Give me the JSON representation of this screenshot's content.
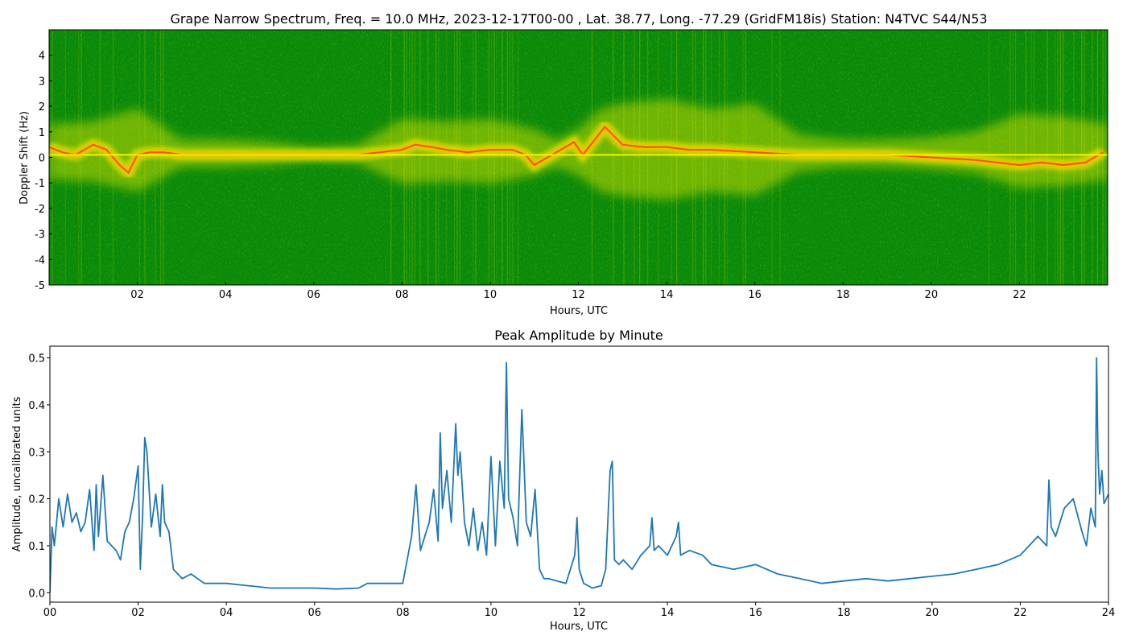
{
  "chart_data": [
    {
      "type": "heatmap",
      "title": "Grape Narrow Spectrum, Freq. = 10.0 MHz, 2023-12-17T00-00 , Lat.  38.77, Long. -77.29 (GridFM18is) Station: N4TVC S44/N53",
      "xlabel": "Hours, UTC",
      "ylabel": "Doppler Shift (Hz)",
      "xlim": [
        0,
        24
      ],
      "ylim": [
        -5,
        5
      ],
      "x_ticks": [
        "02",
        "04",
        "06",
        "08",
        "10",
        "12",
        "14",
        "16",
        "18",
        "20",
        "22"
      ],
      "y_ticks": [
        "-5",
        "-4",
        "-3",
        "-2",
        "-1",
        "0",
        "1",
        "2",
        "3",
        "4"
      ],
      "colors": {
        "background": "#0a8a0a",
        "mid": "#e8e800",
        "high": "#ff3300"
      },
      "carrier_hz": 0.1,
      "doppler_trace": {
        "hours": [
          0,
          0.3,
          0.6,
          1.0,
          1.3,
          1.6,
          1.8,
          2.0,
          2.3,
          2.6,
          3.0,
          4.0,
          5.0,
          6.0,
          7.0,
          7.5,
          8.0,
          8.3,
          8.7,
          9.0,
          9.5,
          10.0,
          10.5,
          10.8,
          11.0,
          11.5,
          11.9,
          12.1,
          12.6,
          13.0,
          13.5,
          14.0,
          14.5,
          15.0,
          16.0,
          17.0,
          18.0,
          19.0,
          20.0,
          21.0,
          22.0,
          22.5,
          23.0,
          23.5,
          23.9
        ],
        "shift_hz": [
          0.4,
          0.2,
          0.1,
          0.5,
          0.3,
          -0.3,
          -0.6,
          0.1,
          0.2,
          0.2,
          0.1,
          0.1,
          0.1,
          0.1,
          0.1,
          0.2,
          0.3,
          0.5,
          0.4,
          0.3,
          0.2,
          0.3,
          0.3,
          0.1,
          -0.3,
          0.2,
          0.6,
          0.1,
          1.2,
          0.5,
          0.4,
          0.4,
          0.3,
          0.3,
          0.2,
          0.1,
          0.1,
          0.1,
          0.0,
          -0.1,
          -0.3,
          -0.2,
          -0.3,
          -0.2,
          0.2
        ]
      },
      "activity": {
        "hours": [
          0,
          1,
          2,
          3,
          4,
          5,
          6,
          7,
          7.5,
          8,
          9,
          10,
          11,
          11.5,
          12,
          12.5,
          13,
          14,
          15,
          16,
          17,
          18,
          19,
          20,
          21,
          22,
          23,
          24
        ],
        "spread_hz": [
          1.2,
          1.3,
          1.8,
          0.6,
          0.6,
          0.5,
          0.3,
          0.4,
          0.9,
          1.4,
          1.3,
          1.4,
          1.0,
          0.6,
          1.0,
          1.8,
          2.0,
          2.2,
          1.8,
          2.0,
          0.8,
          0.6,
          0.6,
          0.7,
          0.9,
          1.6,
          1.5,
          1.2
        ]
      }
    },
    {
      "type": "line",
      "title": "Peak Amplitude by Minute",
      "xlabel": "Hours, UTC",
      "ylabel": "Amplitude, uncalibrated units",
      "xlim": [
        0,
        24
      ],
      "ylim": [
        -0.02,
        0.525
      ],
      "x_ticks": [
        "00",
        "02",
        "04",
        "06",
        "08",
        "10",
        "12",
        "14",
        "16",
        "18",
        "20",
        "22",
        "24"
      ],
      "y_ticks": [
        "0.0",
        "0.1",
        "0.2",
        "0.3",
        "0.4",
        "0.5"
      ],
      "line_color": "#1f77b4",
      "series": [
        {
          "x": [
            0.0,
            0.05,
            0.1,
            0.2,
            0.3,
            0.4,
            0.5,
            0.6,
            0.7,
            0.8,
            0.9,
            1.0,
            1.05,
            1.1,
            1.2,
            1.3,
            1.4,
            1.5,
            1.6,
            1.7,
            1.8,
            1.9,
            2.0,
            2.05,
            2.1,
            2.15,
            2.2,
            2.3,
            2.4,
            2.5,
            2.55,
            2.6,
            2.7,
            2.8,
            3.0,
            3.2,
            3.5,
            4.0,
            4.5,
            5.0,
            5.5,
            6.0,
            6.5,
            7.0,
            7.2,
            7.5,
            7.8,
            8.0,
            8.1,
            8.2,
            8.3,
            8.4,
            8.5,
            8.6,
            8.7,
            8.8,
            8.85,
            8.9,
            9.0,
            9.1,
            9.2,
            9.25,
            9.3,
            9.4,
            9.5,
            9.6,
            9.7,
            9.8,
            9.9,
            10.0,
            10.1,
            10.2,
            10.3,
            10.35,
            10.4,
            10.5,
            10.6,
            10.7,
            10.8,
            10.9,
            11.0,
            11.1,
            11.2,
            11.3,
            11.5,
            11.7,
            11.9,
            11.95,
            12.0,
            12.1,
            12.3,
            12.5,
            12.6,
            12.7,
            12.75,
            12.8,
            12.9,
            13.0,
            13.2,
            13.4,
            13.6,
            13.65,
            13.7,
            13.8,
            14.0,
            14.2,
            14.25,
            14.3,
            14.5,
            14.8,
            15.0,
            15.5,
            16.0,
            16.5,
            17.0,
            17.5,
            18.0,
            18.5,
            19.0,
            19.5,
            20.0,
            20.5,
            21.0,
            21.5,
            22.0,
            22.2,
            22.4,
            22.6,
            22.65,
            22.7,
            22.8,
            23.0,
            23.2,
            23.4,
            23.5,
            23.6,
            23.7,
            23.73,
            23.76,
            23.8,
            23.85,
            23.9,
            24.0
          ],
          "y": [
            0.0,
            0.14,
            0.1,
            0.2,
            0.14,
            0.21,
            0.15,
            0.17,
            0.13,
            0.15,
            0.22,
            0.09,
            0.23,
            0.12,
            0.25,
            0.11,
            0.1,
            0.09,
            0.07,
            0.13,
            0.15,
            0.2,
            0.27,
            0.05,
            0.16,
            0.33,
            0.3,
            0.14,
            0.21,
            0.12,
            0.23,
            0.15,
            0.13,
            0.05,
            0.03,
            0.04,
            0.02,
            0.02,
            0.015,
            0.01,
            0.01,
            0.01,
            0.008,
            0.01,
            0.02,
            0.02,
            0.02,
            0.02,
            0.07,
            0.12,
            0.23,
            0.09,
            0.12,
            0.15,
            0.22,
            0.11,
            0.34,
            0.18,
            0.26,
            0.15,
            0.36,
            0.25,
            0.3,
            0.15,
            0.1,
            0.18,
            0.09,
            0.15,
            0.08,
            0.29,
            0.1,
            0.28,
            0.18,
            0.49,
            0.2,
            0.16,
            0.1,
            0.39,
            0.15,
            0.12,
            0.22,
            0.05,
            0.03,
            0.03,
            0.025,
            0.02,
            0.08,
            0.16,
            0.05,
            0.02,
            0.01,
            0.015,
            0.05,
            0.26,
            0.28,
            0.07,
            0.06,
            0.07,
            0.05,
            0.08,
            0.1,
            0.16,
            0.09,
            0.1,
            0.08,
            0.12,
            0.15,
            0.08,
            0.09,
            0.08,
            0.06,
            0.05,
            0.06,
            0.04,
            0.03,
            0.02,
            0.025,
            0.03,
            0.025,
            0.03,
            0.035,
            0.04,
            0.05,
            0.06,
            0.08,
            0.1,
            0.12,
            0.1,
            0.24,
            0.14,
            0.12,
            0.18,
            0.2,
            0.13,
            0.1,
            0.18,
            0.14,
            0.5,
            0.3,
            0.21,
            0.26,
            0.19,
            0.21
          ]
        }
      ]
    }
  ]
}
